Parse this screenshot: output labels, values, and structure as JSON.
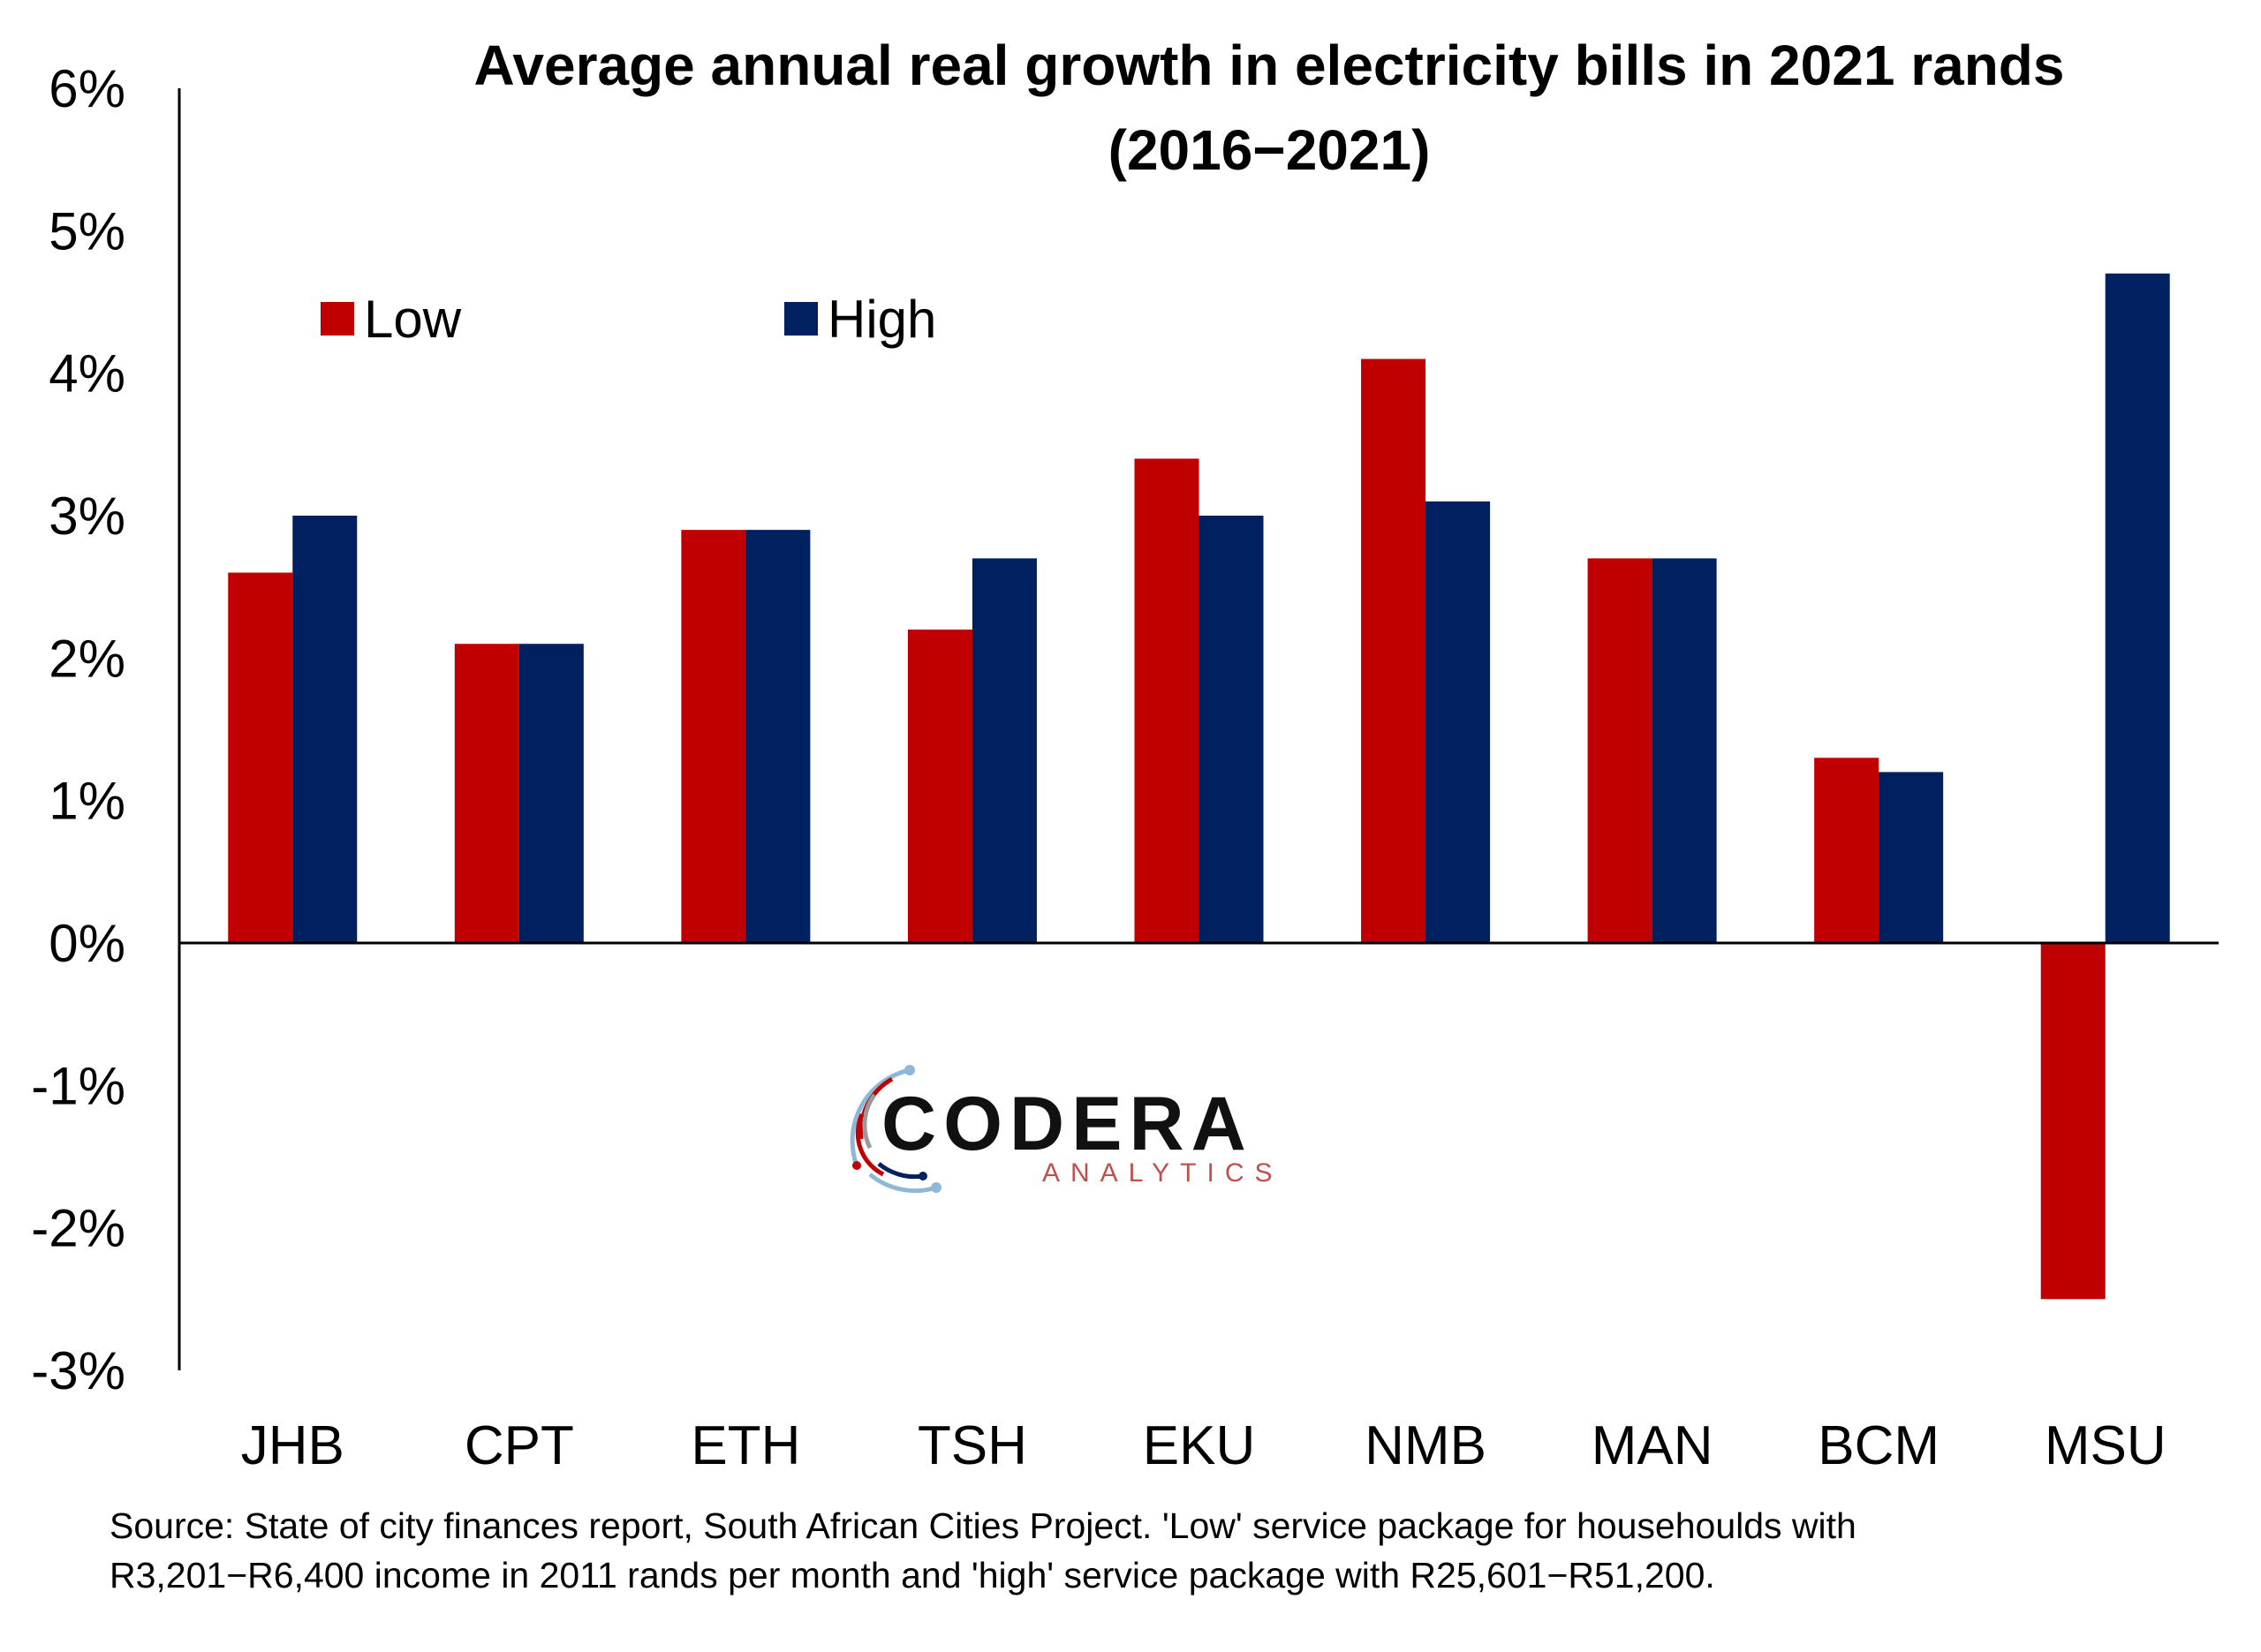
{
  "chart_data": {
    "type": "bar",
    "title_line1": "Average annual real growth in electricity bills in 2021 rands",
    "title_line2": "(2016−2021)",
    "xlabel": "",
    "ylabel": "",
    "ylim": [
      -3,
      6
    ],
    "y_ticks": [
      {
        "value": 6,
        "label": "6%"
      },
      {
        "value": 5,
        "label": "5%"
      },
      {
        "value": 4,
        "label": "4%"
      },
      {
        "value": 3,
        "label": "3%"
      },
      {
        "value": 2,
        "label": "2%"
      },
      {
        "value": 1,
        "label": "1%"
      },
      {
        "value": 0,
        "label": "0%"
      },
      {
        "value": -1,
        "label": "-1%"
      },
      {
        "value": -2,
        "label": "-2%"
      },
      {
        "value": -3,
        "label": "-3%"
      }
    ],
    "categories": [
      "JHB",
      "CPT",
      "ETH",
      "TSH",
      "EKU",
      "NMB",
      "MAN",
      "BCM",
      "MSU"
    ],
    "series": [
      {
        "name": "Low",
        "color": "#c00000",
        "values": [
          2.6,
          2.1,
          2.9,
          2.2,
          3.4,
          4.1,
          2.7,
          1.3,
          -2.5
        ]
      },
      {
        "name": "High",
        "color": "#002060",
        "values": [
          3.0,
          2.1,
          2.9,
          2.7,
          3.0,
          3.1,
          2.7,
          1.2,
          4.7
        ]
      }
    ],
    "grid": false,
    "legend_position": "top-left"
  },
  "logo": {
    "word": "CODERA",
    "sub": "ANALYTICS"
  },
  "source": {
    "line1": "Source: State of city finances report, South African Cities Project. 'Low' service package for househoulds with",
    "line2": "R3,201−R6,400 income in 2011 rands per month and 'high' service package with R25,601−R51,200."
  }
}
